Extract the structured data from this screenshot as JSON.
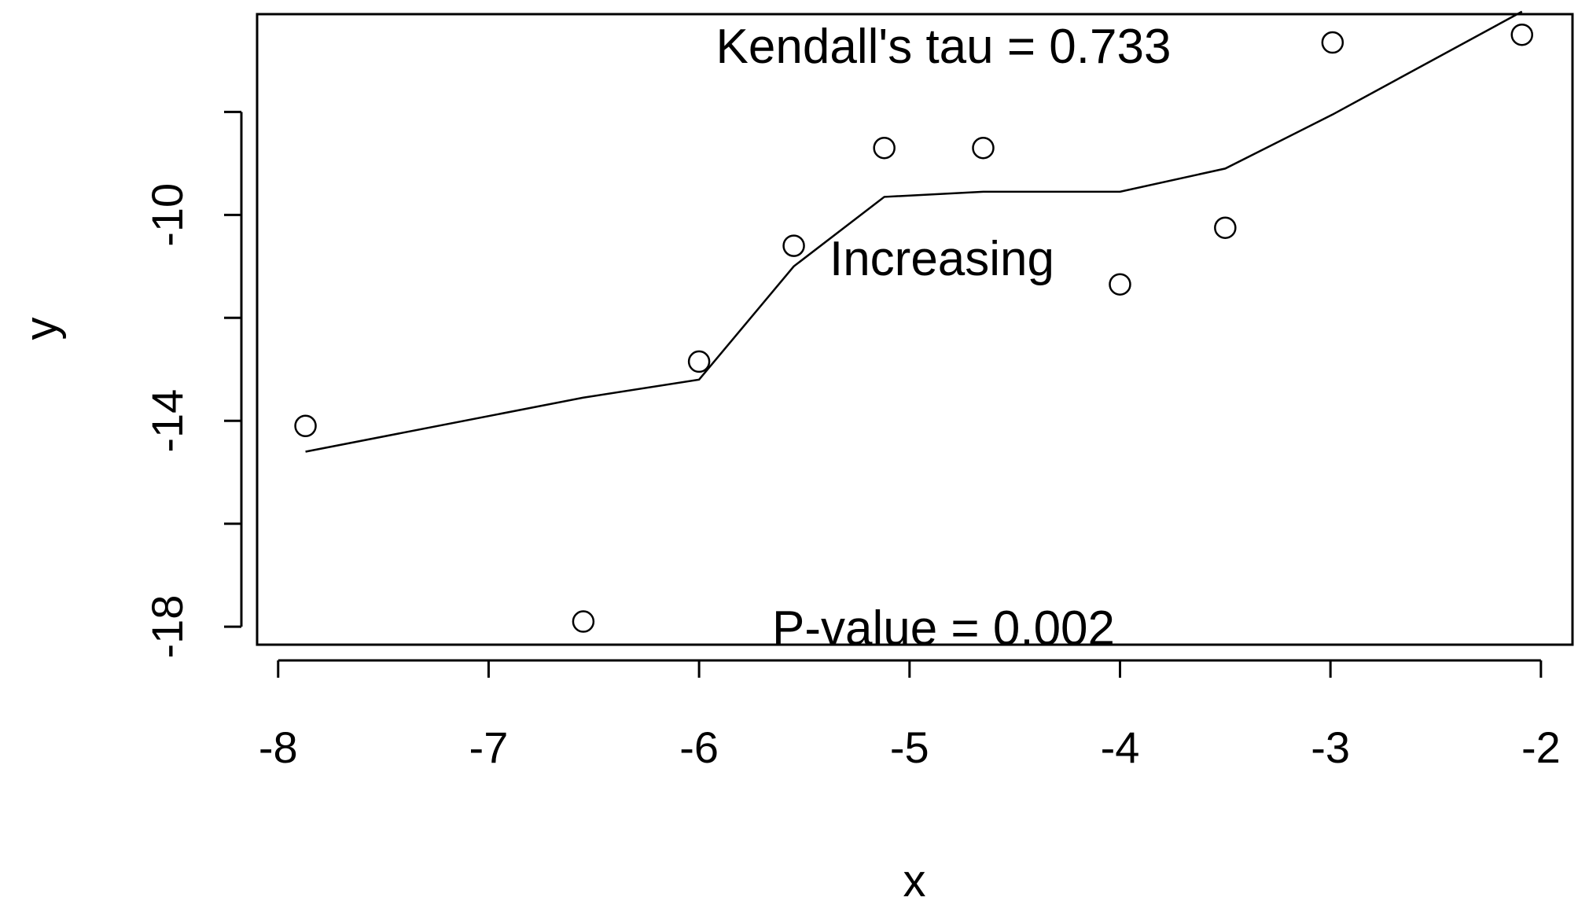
{
  "chart_data": {
    "type": "scatter",
    "xlabel": "x",
    "ylabel": "y",
    "xlim": [
      -8.1,
      -1.85
    ],
    "ylim": [
      -18.35,
      -6.1
    ],
    "x_ticks": [
      -8,
      -7,
      -6,
      -5,
      -4,
      -3,
      -2
    ],
    "x_tick_labels": [
      "-8",
      "-7",
      "-6",
      "-5",
      "-4",
      "-3",
      "-2"
    ],
    "y_ticks": [
      -18,
      -16,
      -14,
      -12,
      -10,
      -8
    ],
    "y_tick_labels": [
      "-18",
      "",
      "-14",
      "",
      "-10",
      ""
    ],
    "points": {
      "x": [
        -7.87,
        -6.55,
        -6.0,
        -5.55,
        -5.12,
        -4.65,
        -4.0,
        -3.5,
        -2.99,
        -2.09
      ],
      "y": [
        -14.1,
        -17.9,
        -12.85,
        -10.6,
        -8.7,
        -8.7,
        -11.35,
        -10.25,
        -6.65,
        -6.5
      ]
    },
    "trend_line": {
      "x": [
        -7.87,
        -6.55,
        -6.0,
        -5.55,
        -5.12,
        -4.65,
        -4.0,
        -3.5,
        -2.99,
        -2.09
      ],
      "y": [
        -14.6,
        -13.55,
        -13.2,
        -11.0,
        -9.65,
        -9.55,
        -9.55,
        -9.1,
        -8.05,
        -6.05
      ]
    },
    "annotations": {
      "tau": "Kendall's tau =  0.733",
      "trend": "Increasing",
      "pvalue": "P-value =  0.002"
    },
    "grid": false,
    "legend": "none"
  }
}
